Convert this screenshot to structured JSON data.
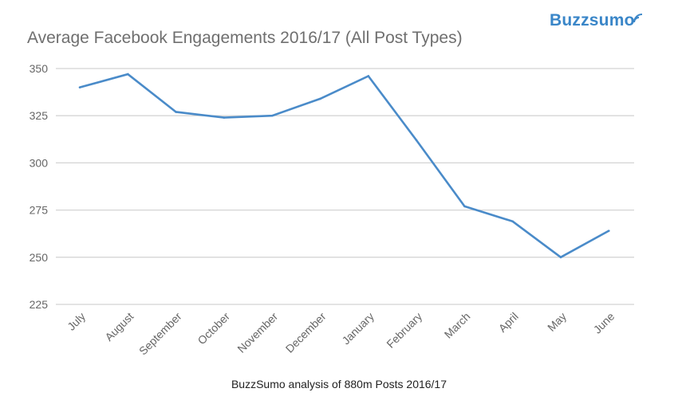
{
  "chart_data": {
    "type": "line",
    "title": "Average Facebook Engagements 2016/17 (All Post Types)",
    "xlabel": "BuzzSumo analysis of 880m Posts 2016/17",
    "ylabel": "",
    "categories": [
      "July",
      "August",
      "September",
      "October",
      "November",
      "December",
      "January",
      "February",
      "March",
      "April",
      "May",
      "June"
    ],
    "series": [
      {
        "values": [
          340,
          347,
          327,
          324,
          325,
          334,
          346,
          312,
          277,
          269,
          250,
          264
        ],
        "color": "#4a8bc9"
      }
    ],
    "ylim": [
      225,
      350
    ],
    "yticks": [
      225,
      250,
      275,
      300,
      325,
      350
    ],
    "grid": true,
    "legend": "none"
  },
  "logo": {
    "text": "Buzzsumo",
    "color": "#3a86c8"
  }
}
